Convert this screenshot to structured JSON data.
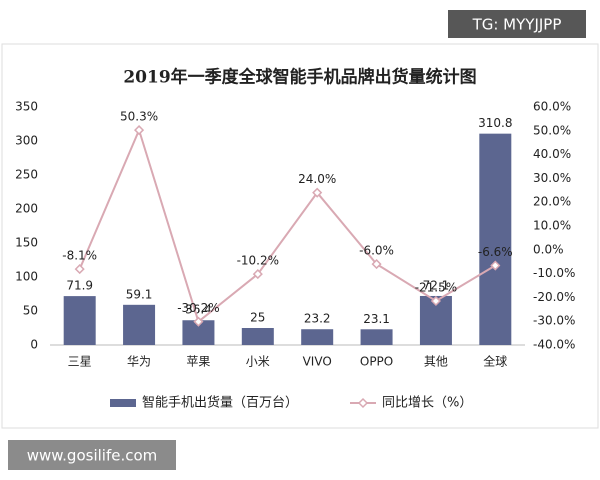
{
  "watermarks": [
    "TG: MYYJJPP",
    "www.gosilife.com"
  ],
  "chart_data": {
    "type": "bar-line",
    "title": "2019年一季度全球智能手机品牌出货量统计图",
    "categories": [
      "三星",
      "华为",
      "苹果",
      "小米",
      "VIVO",
      "OPPO",
      "其他",
      "全球"
    ],
    "series": [
      {
        "name": "智能手机出货量（百万台）",
        "type": "bar",
        "color": "#5c6690",
        "values": [
          71.9,
          59.1,
          36.4,
          25,
          23.2,
          23.1,
          72.1,
          310.8
        ]
      },
      {
        "name": "同比增长（%）",
        "type": "line",
        "axis": "y2",
        "color": "#d9a9b3",
        "values": [
          -8.1,
          50.3,
          -30.2,
          -10.2,
          24.0,
          -6.0,
          -21.5,
          -6.6
        ],
        "value_labels": [
          "-8.1%",
          "50.3%",
          "-30.2%",
          "-10.2%",
          "24.0%",
          "-6.0%",
          "-21.5%",
          "-6.6%"
        ]
      }
    ],
    "ylim": [
      0,
      350
    ],
    "yticks": [
      0,
      50,
      100,
      150,
      200,
      250,
      300,
      350
    ],
    "y2lim": [
      -40,
      60
    ],
    "y2ticks": [
      {
        "value": 60,
        "label": "60.0%"
      },
      {
        "value": 50,
        "label": "50.0%"
      },
      {
        "value": 40,
        "label": "40.0%"
      },
      {
        "value": 30,
        "label": "30.0%"
      },
      {
        "value": 20,
        "label": "20.0%"
      },
      {
        "value": 10,
        "label": "10.0%"
      },
      {
        "value": 0,
        "label": "0.0%"
      },
      {
        "value": -10,
        "label": "-10.0%"
      },
      {
        "value": -20,
        "label": "-20.0%"
      },
      {
        "value": -30,
        "label": "-30.0%"
      },
      {
        "value": -40,
        "label": "-40.0%"
      }
    ],
    "grid": false,
    "legend": "bottom"
  }
}
